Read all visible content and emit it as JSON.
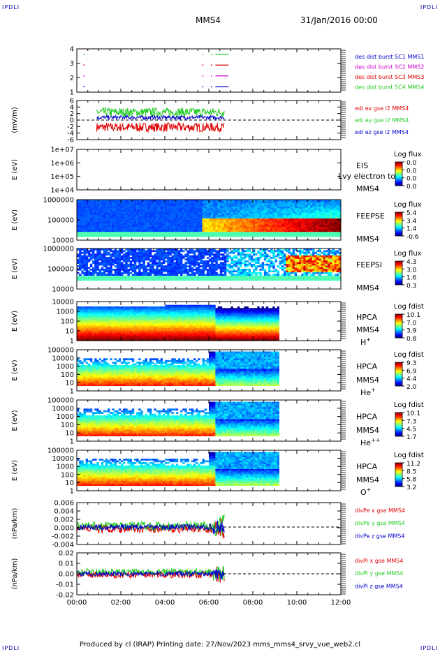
{
  "corners": {
    "tl": "IPDLI",
    "tr": "IPDLI",
    "bl": "IPDLI",
    "br": "IPDLI"
  },
  "header": {
    "spacecraft": "MMS4",
    "date": "31/Jan/2016 00:00"
  },
  "footer": {
    "text": "Produced by cl (IRAP)   Printing date: 27/Nov/2023   mms_mms4_srvy_vue_web2.cl"
  },
  "time_axis": {
    "ticks": [
      "00:00",
      "02:00",
      "04:00",
      "06:00",
      "08:00",
      "10:00",
      "12:00"
    ],
    "range_hours": [
      0,
      12
    ]
  },
  "colors": {
    "red": "#e00000",
    "green": "#22cc22",
    "blue": "#0000cc",
    "magenta": "#cc00cc"
  },
  "chart_data": [
    {
      "type": "line",
      "ylabel": "",
      "yticks": [
        "4",
        "3",
        "2",
        "1"
      ],
      "ylim": [
        0.5,
        4.5
      ],
      "legend": [
        {
          "label": "des dist burst SC1 MMS1",
          "color": "#0000cc"
        },
        {
          "label": "des dist burst SC2 MMS2",
          "color": "#cc00cc"
        },
        {
          "label": "des dist burst SC3 MMS3",
          "color": "#e00000"
        },
        {
          "label": "des dist burst SC4 MMS4",
          "color": "#22cc22"
        }
      ],
      "series": [
        {
          "level": 4,
          "color": "#22cc22",
          "segments": [
            [
              6.3,
              6.9
            ]
          ],
          "dots": [
            0.3,
            5.7,
            6.1
          ]
        },
        {
          "level": 3,
          "color": "#e00000",
          "segments": [
            [
              6.3,
              6.9
            ]
          ],
          "dots": [
            0.3,
            5.7,
            6.1
          ]
        },
        {
          "level": 2,
          "color": "#cc00cc",
          "segments": [
            [
              6.3,
              6.9
            ]
          ],
          "dots": [
            0.3,
            5.7,
            6.1
          ]
        },
        {
          "level": 1,
          "color": "#0000cc",
          "segments": [
            [
              6.3,
              6.9
            ]
          ],
          "dots": [
            0.3,
            5.7,
            6.1
          ]
        }
      ]
    },
    {
      "type": "line",
      "ylabel": "(mV/m)",
      "yticks": [
        "6",
        "4",
        "2",
        "0",
        "-2",
        "-4",
        "-6"
      ],
      "ylim": [
        -6,
        6
      ],
      "legend": [
        {
          "label": "edi ex gse l2 MMS4",
          "color": "#e00000"
        },
        {
          "label": "edi ey gse l2 MMS4",
          "color": "#22cc22"
        },
        {
          "label": "edi ez gse l2 MMS4",
          "color": "#0000cc"
        }
      ],
      "series": [
        {
          "name": "ex",
          "color": "#e00000",
          "range_hours": [
            0.9,
            6.7
          ],
          "mean": -2.2,
          "spread": 1.4
        },
        {
          "name": "ey",
          "color": "#22cc22",
          "range_hours": [
            0.9,
            6.7
          ],
          "mean": 2.4,
          "spread": 1.4
        },
        {
          "name": "ez",
          "color": "#0000cc",
          "range_hours": [
            0.9,
            6.7
          ],
          "mean": 0.8,
          "spread": 0.6
        }
      ]
    },
    {
      "type": "heatmap",
      "ylabel": "E (eV)",
      "yticks": [
        "1e+07",
        "1e+06",
        "1e+05",
        "1e+04"
      ],
      "labels": [
        "EIS",
        "MMS4"
      ],
      "overlay": "Lvy electron to",
      "cbar_title": "Log flux",
      "cbar_ticks": [
        "0.0",
        "0.0",
        "0.0",
        "0.0"
      ]
    },
    {
      "type": "heatmap",
      "ylabel": "E (eV)",
      "yticks": [
        "1000000",
        "100000",
        "10000"
      ],
      "labels": [
        "FEEPSE",
        "MMS4"
      ],
      "cbar_title": "Log flux",
      "cbar_ticks": [
        "5.4",
        "3.4",
        "1.4",
        "-0.6"
      ]
    },
    {
      "type": "heatmap",
      "ylabel": "E (eV)",
      "yticks": [
        "1000000",
        "100000",
        "10000"
      ],
      "labels": [
        "FEEPSI",
        "MMS4"
      ],
      "cbar_title": "Log flux",
      "cbar_ticks": [
        "4.3",
        "3.0",
        "1.6",
        "0.3"
      ]
    },
    {
      "type": "heatmap",
      "ylabel": "E (eV)",
      "yticks": [
        "10000",
        "1000",
        "100",
        "10",
        "1"
      ],
      "labels": [
        "HPCA",
        "MMS4"
      ],
      "species": "H",
      "species_sup": "+",
      "cbar_title": "Log fdist",
      "cbar_ticks": [
        "10.1",
        "7.0",
        "3.9",
        "0.8"
      ]
    },
    {
      "type": "heatmap",
      "ylabel": "E (eV)",
      "yticks": [
        "100000",
        "10000",
        "1000",
        "100",
        "10",
        "1"
      ],
      "labels": [
        "HPCA",
        "MMS4"
      ],
      "species": "He",
      "species_sup": "+",
      "cbar_title": "Log fdist",
      "cbar_ticks": [
        "9.3",
        "6.9",
        "4.4",
        "2.0"
      ]
    },
    {
      "type": "heatmap",
      "ylabel": "E (eV)",
      "yticks": [
        "100000",
        "10000",
        "1000",
        "100",
        "10",
        "1"
      ],
      "labels": [
        "HPCA",
        "MMS4"
      ],
      "species": "He",
      "species_sup": "++",
      "cbar_title": "Log fdist",
      "cbar_ticks": [
        "10.1",
        "7.3",
        "4.5",
        "1.7"
      ]
    },
    {
      "type": "heatmap",
      "ylabel": "E (eV)",
      "yticks": [
        "100000",
        "10000",
        "1000",
        "100",
        "10",
        "1"
      ],
      "labels": [
        "HPCA",
        "MMS4"
      ],
      "species": "O",
      "species_sup": "+",
      "cbar_title": "Log fdist",
      "cbar_ticks": [
        "11.2",
        "8.5",
        "5.8",
        "3.2"
      ]
    },
    {
      "type": "line",
      "ylabel": "(nPa/km)",
      "yticks": [
        "0.006",
        "0.004",
        "0.002",
        "0.000",
        "-0.002",
        "-0.004"
      ],
      "ylim": [
        -0.005,
        0.007
      ],
      "legend": [
        {
          "label": "divPe x gse MMS4",
          "color": "#e00000"
        },
        {
          "label": "divPe y gse MMS4",
          "color": "#22cc22"
        },
        {
          "label": "divPe z gse MMS4",
          "color": "#0000cc"
        }
      ],
      "series": [
        {
          "name": "x",
          "color": "#e00000",
          "range_hours": [
            0,
            6.7
          ],
          "mean": -0.0005,
          "spread": 0.0012
        },
        {
          "name": "y",
          "color": "#22cc22",
          "range_hours": [
            0,
            6.7
          ],
          "mean": 0.0003,
          "spread": 0.0013
        },
        {
          "name": "z",
          "color": "#0000cc",
          "range_hours": [
            0,
            6.7
          ],
          "mean": 0.0,
          "spread": 0.0008
        }
      ]
    },
    {
      "type": "line",
      "ylabel": "(nPa/km)",
      "yticks": [
        "0.02",
        "0.01",
        "0.00",
        "-0.01",
        "-0.02"
      ],
      "ylim": [
        -0.025,
        0.025
      ],
      "legend": [
        {
          "label": "divPi x gse MMS4",
          "color": "#e00000"
        },
        {
          "label": "divPi y gse MMS4",
          "color": "#22cc22"
        },
        {
          "label": "divPi z gse MMS4",
          "color": "#0000cc"
        }
      ],
      "series": [
        {
          "name": "x",
          "color": "#e00000",
          "range_hours": [
            0,
            6.7
          ],
          "mean": -0.001,
          "spread": 0.004
        },
        {
          "name": "y",
          "color": "#22cc22",
          "range_hours": [
            0,
            6.7
          ],
          "mean": 0.002,
          "spread": 0.004
        },
        {
          "name": "z",
          "color": "#0000cc",
          "range_hours": [
            0,
            6.7
          ],
          "mean": 0.0,
          "spread": 0.003
        }
      ]
    }
  ]
}
